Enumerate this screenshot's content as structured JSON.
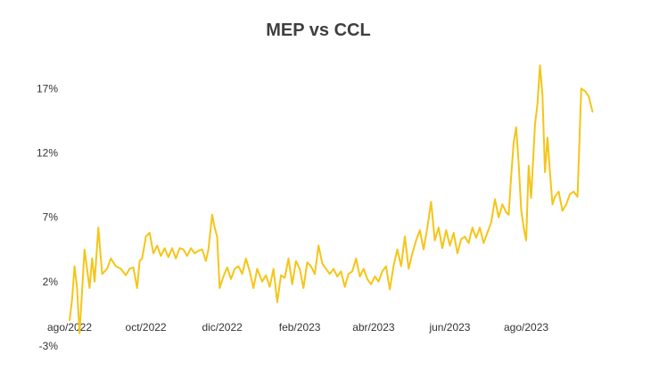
{
  "chart_data": {
    "type": "line",
    "title": "MEP vs CCL",
    "xlabel": "",
    "ylabel": "",
    "x_ticks": [
      "ago/2022",
      "oct/2022",
      "dic/2022",
      "feb/2023",
      "abr/2023",
      "jun/2023",
      "ago/2023"
    ],
    "y_ticks": [
      "17%",
      "12%",
      "7%",
      "2%",
      "-3%"
    ],
    "y_tick_values": [
      17,
      12,
      7,
      2,
      -3
    ],
    "ylim": [
      -3,
      20
    ],
    "x_range": [
      "2022-08-01",
      "2023-09-27"
    ],
    "grid": false,
    "legend": "none",
    "series": [
      {
        "color": "#F5C518",
        "points": [
          [
            "2022-08-01",
            -1.0
          ],
          [
            "2022-08-03",
            0.6
          ],
          [
            "2022-08-05",
            3.2
          ],
          [
            "2022-08-07",
            1.5
          ],
          [
            "2022-08-09",
            -2.0
          ],
          [
            "2022-08-11",
            1.2
          ],
          [
            "2022-08-13",
            4.5
          ],
          [
            "2022-08-15",
            3.0
          ],
          [
            "2022-08-17",
            1.5
          ],
          [
            "2022-08-19",
            3.8
          ],
          [
            "2022-08-21",
            2.0
          ],
          [
            "2022-08-24",
            6.2
          ],
          [
            "2022-08-27",
            2.6
          ],
          [
            "2022-08-31",
            3.0
          ],
          [
            "2022-09-03",
            3.8
          ],
          [
            "2022-09-07",
            3.2
          ],
          [
            "2022-09-11",
            3.0
          ],
          [
            "2022-09-15",
            2.5
          ],
          [
            "2022-09-18",
            3.0
          ],
          [
            "2022-09-21",
            3.1
          ],
          [
            "2022-09-24",
            1.5
          ],
          [
            "2022-09-26",
            3.6
          ],
          [
            "2022-09-28",
            3.8
          ],
          [
            "2022-10-01",
            5.5
          ],
          [
            "2022-10-04",
            5.8
          ],
          [
            "2022-10-07",
            4.2
          ],
          [
            "2022-10-10",
            4.8
          ],
          [
            "2022-10-13",
            4.0
          ],
          [
            "2022-10-16",
            4.6
          ],
          [
            "2022-10-19",
            3.9
          ],
          [
            "2022-10-22",
            4.6
          ],
          [
            "2022-10-25",
            3.8
          ],
          [
            "2022-10-28",
            4.6
          ],
          [
            "2022-10-31",
            4.5
          ],
          [
            "2022-11-03",
            4.0
          ],
          [
            "2022-11-06",
            4.6
          ],
          [
            "2022-11-09",
            4.2
          ],
          [
            "2022-11-12",
            4.4
          ],
          [
            "2022-11-15",
            4.5
          ],
          [
            "2022-11-18",
            3.6
          ],
          [
            "2022-11-20",
            4.5
          ],
          [
            "2022-11-23",
            7.2
          ],
          [
            "2022-11-25",
            6.2
          ],
          [
            "2022-11-27",
            5.5
          ],
          [
            "2022-11-29",
            1.5
          ],
          [
            "2022-12-02",
            2.4
          ],
          [
            "2022-12-05",
            3.1
          ],
          [
            "2022-12-08",
            2.2
          ],
          [
            "2022-12-11",
            3.0
          ],
          [
            "2022-12-14",
            3.2
          ],
          [
            "2022-12-17",
            2.6
          ],
          [
            "2022-12-20",
            3.8
          ],
          [
            "2022-12-23",
            2.8
          ],
          [
            "2022-12-26",
            1.5
          ],
          [
            "2022-12-29",
            3.0
          ],
          [
            "2023-01-02",
            2.0
          ],
          [
            "2023-01-05",
            2.5
          ],
          [
            "2023-01-08",
            1.6
          ],
          [
            "2023-01-11",
            3.0
          ],
          [
            "2023-01-14",
            0.4
          ],
          [
            "2023-01-17",
            2.5
          ],
          [
            "2023-01-20",
            2.3
          ],
          [
            "2023-01-23",
            3.8
          ],
          [
            "2023-01-26",
            1.8
          ],
          [
            "2023-01-29",
            3.6
          ],
          [
            "2023-02-01",
            3.0
          ],
          [
            "2023-02-04",
            1.5
          ],
          [
            "2023-02-07",
            3.5
          ],
          [
            "2023-02-10",
            3.2
          ],
          [
            "2023-02-13",
            2.6
          ],
          [
            "2023-02-16",
            4.8
          ],
          [
            "2023-02-19",
            3.4
          ],
          [
            "2023-02-22",
            3.0
          ],
          [
            "2023-02-25",
            2.6
          ],
          [
            "2023-02-28",
            3.0
          ],
          [
            "2023-03-03",
            2.4
          ],
          [
            "2023-03-06",
            2.8
          ],
          [
            "2023-03-09",
            1.6
          ],
          [
            "2023-03-12",
            2.6
          ],
          [
            "2023-03-15",
            2.8
          ],
          [
            "2023-03-18",
            3.8
          ],
          [
            "2023-03-21",
            2.4
          ],
          [
            "2023-03-24",
            3.0
          ],
          [
            "2023-03-27",
            2.2
          ],
          [
            "2023-03-30",
            1.8
          ],
          [
            "2023-04-02",
            2.4
          ],
          [
            "2023-04-05",
            2.0
          ],
          [
            "2023-04-08",
            2.8
          ],
          [
            "2023-04-11",
            3.2
          ],
          [
            "2023-04-14",
            1.4
          ],
          [
            "2023-04-17",
            3.2
          ],
          [
            "2023-04-20",
            4.5
          ],
          [
            "2023-04-23",
            3.2
          ],
          [
            "2023-04-26",
            5.5
          ],
          [
            "2023-04-29",
            3.0
          ],
          [
            "2023-05-02",
            4.2
          ],
          [
            "2023-05-05",
            5.2
          ],
          [
            "2023-05-08",
            6.0
          ],
          [
            "2023-05-11",
            4.5
          ],
          [
            "2023-05-14",
            6.2
          ],
          [
            "2023-05-17",
            8.2
          ],
          [
            "2023-05-20",
            5.2
          ],
          [
            "2023-05-23",
            6.2
          ],
          [
            "2023-05-26",
            4.6
          ],
          [
            "2023-05-29",
            6.0
          ],
          [
            "2023-06-01",
            4.8
          ],
          [
            "2023-06-04",
            5.8
          ],
          [
            "2023-06-07",
            4.2
          ],
          [
            "2023-06-10",
            5.3
          ],
          [
            "2023-06-13",
            5.5
          ],
          [
            "2023-06-16",
            5.0
          ],
          [
            "2023-06-19",
            6.2
          ],
          [
            "2023-06-22",
            5.4
          ],
          [
            "2023-06-25",
            6.2
          ],
          [
            "2023-06-28",
            5.0
          ],
          [
            "2023-07-01",
            5.8
          ],
          [
            "2023-07-04",
            6.6
          ],
          [
            "2023-07-07",
            8.4
          ],
          [
            "2023-07-10",
            7.0
          ],
          [
            "2023-07-13",
            8.0
          ],
          [
            "2023-07-16",
            7.4
          ],
          [
            "2023-07-18",
            7.2
          ],
          [
            "2023-07-20",
            10.2
          ],
          [
            "2023-07-22",
            12.8
          ],
          [
            "2023-07-24",
            14.0
          ],
          [
            "2023-07-26",
            11.2
          ],
          [
            "2023-07-28",
            7.6
          ],
          [
            "2023-07-30",
            6.2
          ],
          [
            "2023-08-01",
            5.2
          ],
          [
            "2023-08-03",
            11.0
          ],
          [
            "2023-08-05",
            8.5
          ],
          [
            "2023-08-08",
            14.2
          ],
          [
            "2023-08-10",
            15.8
          ],
          [
            "2023-08-12",
            18.8
          ],
          [
            "2023-08-14",
            16.5
          ],
          [
            "2023-08-16",
            10.5
          ],
          [
            "2023-08-18",
            13.2
          ],
          [
            "2023-08-20",
            10.5
          ],
          [
            "2023-08-22",
            8.0
          ],
          [
            "2023-08-24",
            8.6
          ],
          [
            "2023-08-27",
            9.0
          ],
          [
            "2023-08-30",
            7.5
          ],
          [
            "2023-09-02",
            8.0
          ],
          [
            "2023-09-05",
            8.8
          ],
          [
            "2023-09-08",
            9.0
          ],
          [
            "2023-09-11",
            8.6
          ],
          [
            "2023-09-14",
            17.0
          ],
          [
            "2023-09-17",
            16.8
          ],
          [
            "2023-09-20",
            16.4
          ],
          [
            "2023-09-23",
            15.2
          ]
        ]
      }
    ]
  }
}
